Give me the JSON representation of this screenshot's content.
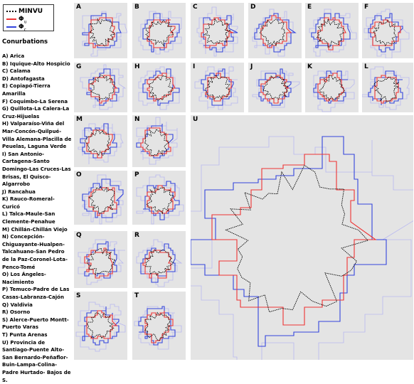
{
  "legend": {
    "items": [
      {
        "label": "MINVU",
        "color": "#000000",
        "style": "dotted"
      },
      {
        "label": "Φ",
        "subscript": "u",
        "color": "#ee3333",
        "style": "solid"
      },
      {
        "label": "Φ",
        "subscript": "c",
        "color": "#3344dd",
        "style": "solid"
      }
    ]
  },
  "conurbations": {
    "title": "Conurbations",
    "items": [
      "A) Arica",
      "B) Iquique-Alto Hospicio",
      "C) Calama",
      "D) Antofagasta",
      "E) Copiapó-Tierra Amarilla",
      "F) Coquimbo-La Serena",
      "G) Quillota-La Calera-La Cruz-Hijuelas",
      "H) Valparaíso-Viña del Mar-Concón-Quilpué-Villa Alemana-Placilla de Peuelas, Laguna Verde",
      "I) San Antonio-Cartagena-Santo Domingo-Las Cruces-Las Brisas, El Quisco-Algarrobo",
      "J) Rancahua",
      "K) Rauco-Romeral-Curicó",
      "L) Talca-Maule-San Clemente-Penahue",
      "M) Chillán-Chillán Viejo",
      "N) Concepción-Chiguayante-Hualpen-Talcahuano-San Pedro de la Paz-Coronel-Lota-Penco-Tomé",
      "O) Los Ángeles-Nacimiento",
      "P) Temuco-Padre de Las Casas-Labranza-Cajón",
      "Q) Valdivia",
      "R) Osorno",
      "S) Alerce-Puerto Montt-Puerto Varas",
      "T) Punta Arenas",
      "U) Provincia de Santiago-Puente Alto-San Bernardo-Peñaflor-Buin-Lampa-Colina-Padre Hurtado- Bajos de S."
    ]
  },
  "panels": [
    {
      "letter": "A"
    },
    {
      "letter": "B"
    },
    {
      "letter": "C"
    },
    {
      "letter": "D"
    },
    {
      "letter": "E"
    },
    {
      "letter": "F"
    },
    {
      "letter": "G"
    },
    {
      "letter": "H"
    },
    {
      "letter": "I"
    },
    {
      "letter": "J"
    },
    {
      "letter": "K"
    },
    {
      "letter": "L"
    },
    {
      "letter": "M"
    },
    {
      "letter": "N"
    },
    {
      "letter": "O"
    },
    {
      "letter": "P"
    },
    {
      "letter": "Q"
    },
    {
      "letter": "R"
    },
    {
      "letter": "S"
    },
    {
      "letter": "T"
    },
    {
      "letter": "U"
    }
  ],
  "colors": {
    "panel_bg": "#e4e4e4",
    "minvu": "#000000",
    "phi_u": "#ee3333",
    "phi_c": "#3344dd",
    "coast_land": "#ffffff"
  }
}
